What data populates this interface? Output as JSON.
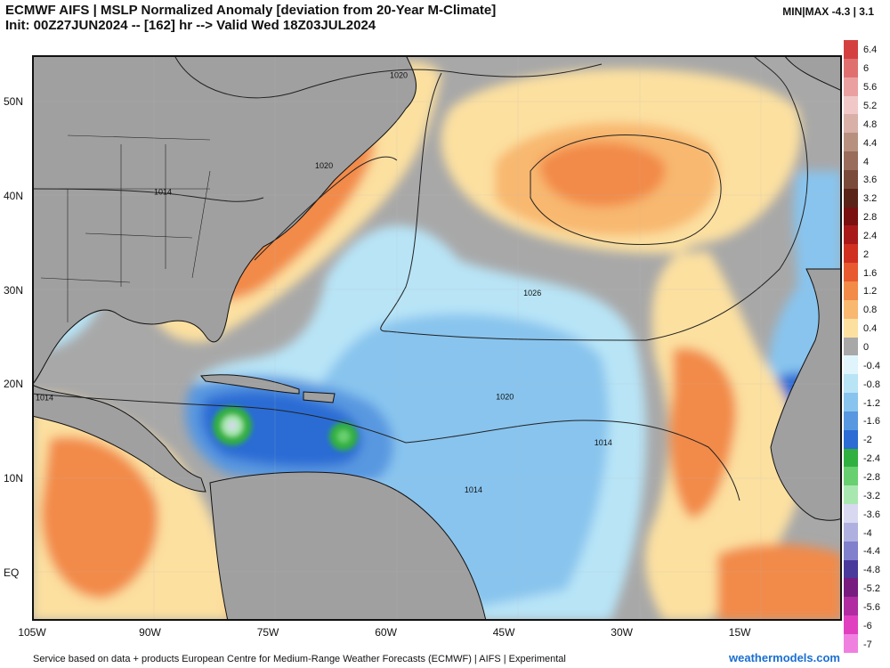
{
  "header": {
    "title_line1": "ECMWF AIFS | MSLP Normalized Anomaly [deviation from 20-Year M-Climate]",
    "title_line2": "Init: 00Z27JUN2024 -- [162] hr --> Valid Wed 18Z03JUL2024",
    "minmax": "MIN|MAX -4.3 | 3.1"
  },
  "map": {
    "lat_labels": [
      "50N",
      "40N",
      "30N",
      "20N",
      "10N",
      "EQ"
    ],
    "lon_labels": [
      "105W",
      "90W",
      "75W",
      "60W",
      "45W",
      "30W",
      "15W"
    ],
    "isobar_labels": [
      {
        "text": "1020",
        "lon": -59.5,
        "lat": 52.6
      },
      {
        "text": "1020",
        "lon": -69,
        "lat": 43
      },
      {
        "text": "1014",
        "lon": -89.5,
        "lat": 40.2
      },
      {
        "text": "1026",
        "lon": -42.5,
        "lat": 29.5
      },
      {
        "text": "1020",
        "lon": -46,
        "lat": 18.5
      },
      {
        "text": "1014",
        "lon": -105,
        "lat": 18.4
      },
      {
        "text": "1014",
        "lon": -33.5,
        "lat": 13.6
      },
      {
        "text": "1014",
        "lon": -50,
        "lat": 8.6
      }
    ],
    "colors": {
      "land": "#a0a0a0",
      "ocean_neutral": "#a8a8a8",
      "isobar": "#222222",
      "border": "#111111"
    }
  },
  "legend": {
    "labels": [
      "6.4",
      "6",
      "5.6",
      "5.2",
      "4.8",
      "4.4",
      "4",
      "3.6",
      "3.2",
      "2.8",
      "2.4",
      "2",
      "1.6",
      "1.2",
      "0.8",
      "0.4",
      "0",
      "-0.4",
      "-0.8",
      "-1.2",
      "-1.6",
      "-2",
      "-2.4",
      "-2.8",
      "-3.2",
      "-3.6",
      "-4",
      "-4.4",
      "-4.8",
      "-5.2",
      "-5.6",
      "-6",
      "-7"
    ],
    "colors": [
      "#d44040",
      "#e07070",
      "#eaa0a0",
      "#f0c8c8",
      "#d8b0a8",
      "#b89080",
      "#9a6c5c",
      "#7a4a3a",
      "#5a2418",
      "#7a1010",
      "#a81a1a",
      "#d03020",
      "#e85a30",
      "#f28a48",
      "#f8b870",
      "#fce0a0",
      "#a8a8a8",
      "#e0f4fc",
      "#b8e4f6",
      "#88c4ee",
      "#5898e0",
      "#2c6cd4",
      "#30b040",
      "#68d070",
      "#a8e8b0",
      "#d8d8f0",
      "#b0b0e0",
      "#8080cc",
      "#4a3a9c",
      "#781c80",
      "#b02ca0",
      "#e040c0",
      "#f080e0"
    ]
  },
  "footer": {
    "text": "Service based on data + products European Centre for Medium-Range Weather Forecasts (ECMWF) | AIFS | Experimental",
    "brand": "weathermodels.com"
  }
}
